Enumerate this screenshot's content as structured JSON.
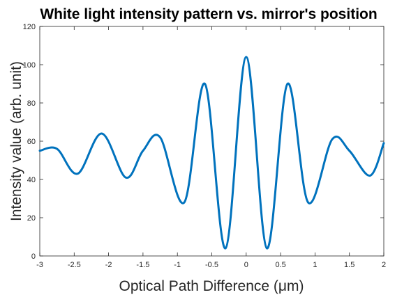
{
  "chart_data": {
    "type": "line",
    "title": "White light intensity pattern vs. mirror's position",
    "xlabel": "Optical Path Difference (μm)",
    "ylabel": "Intensity value (arb. unit)",
    "xlim": [
      -3,
      2
    ],
    "ylim": [
      0,
      120
    ],
    "xticks": [
      -3,
      -2.5,
      -2,
      -1.5,
      -1,
      -0.5,
      0,
      0.5,
      1,
      1.5,
      2
    ],
    "xtick_labels": [
      "-3",
      "-2.5",
      "-2",
      "-1.5",
      "-1",
      "-0.5",
      "0",
      "0.5",
      "1",
      "1.5",
      "2"
    ],
    "yticks": [
      0,
      20,
      40,
      60,
      80,
      100,
      120
    ],
    "ytick_labels": [
      "0",
      "20",
      "40",
      "60",
      "80",
      "100",
      "120"
    ],
    "grid": false,
    "line_color": "#0072BD",
    "series": [
      {
        "x": [
          -3.0,
          -2.75,
          -2.45,
          -2.1,
          -1.75,
          -1.5,
          -1.25,
          -0.9,
          -0.6,
          -0.3,
          0.0,
          0.3,
          0.6,
          0.9,
          1.25,
          1.5,
          1.8,
          2.0
        ],
        "y": [
          55,
          56,
          43,
          64,
          41,
          55,
          62,
          28,
          90,
          4,
          104,
          4,
          90,
          28,
          61,
          55,
          42,
          59
        ]
      }
    ]
  }
}
